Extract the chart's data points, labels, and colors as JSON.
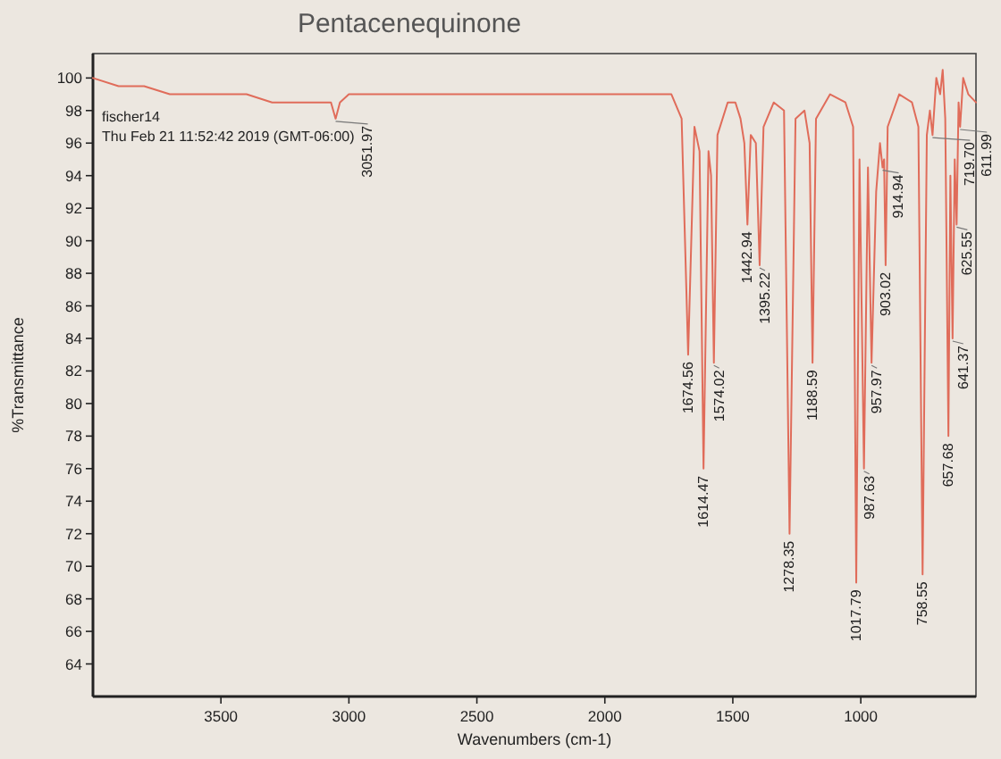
{
  "chart_data": {
    "type": "line",
    "title": "Pentacenequinone",
    "xlabel": "Wavenumbers (cm-1)",
    "ylabel": "%Transmittance",
    "xlim": [
      4000,
      550
    ],
    "ylim": [
      62,
      101.5
    ],
    "xticks": [
      3500,
      3000,
      2500,
      2000,
      1500,
      1000
    ],
    "yticks": [
      64,
      66,
      68,
      70,
      72,
      74,
      76,
      78,
      80,
      82,
      84,
      86,
      88,
      90,
      92,
      94,
      96,
      98,
      100
    ],
    "line_style": "solid",
    "x": [
      4000,
      3900,
      3800,
      3700,
      3600,
      3500,
      3400,
      3300,
      3200,
      3100,
      3070,
      3051.97,
      3035,
      3000,
      2900,
      2700,
      2500,
      2300,
      2100,
      1900,
      1800,
      1740,
      1700,
      1674.56,
      1650,
      1630,
      1614.47,
      1595,
      1585,
      1574.02,
      1560,
      1520,
      1490,
      1470,
      1455,
      1442.94,
      1430,
      1410,
      1395.22,
      1380,
      1340,
      1300,
      1278.35,
      1255,
      1220,
      1200,
      1188.59,
      1175,
      1120,
      1060,
      1030,
      1017.79,
      1005,
      987.63,
      972,
      957.97,
      940,
      925,
      914.94,
      909,
      903.02,
      895,
      850,
      800,
      775,
      758.55,
      742,
      730,
      719.7,
      705,
      690,
      680,
      670,
      657.68,
      650,
      641.37,
      633,
      625.55,
      618,
      611.99,
      600,
      580,
      550
    ],
    "series": [
      {
        "color": "#e06c5a",
        "values": [
          100,
          99.5,
          99.5,
          99,
          99,
          99,
          99,
          98.5,
          98.5,
          98.5,
          98.5,
          97.5,
          98.5,
          99,
          99,
          99,
          99,
          99,
          99,
          99,
          99,
          99,
          97.5,
          83,
          97,
          95.5,
          76,
          95.5,
          94,
          82.5,
          96.5,
          98.5,
          98.5,
          97.5,
          96,
          91,
          96.5,
          96,
          88.5,
          97,
          98.5,
          98,
          72,
          97.5,
          98,
          96,
          82.5,
          97.5,
          99,
          98.5,
          97,
          69,
          95,
          76,
          94.5,
          82.5,
          93,
          96,
          94.5,
          95,
          88.5,
          97,
          99,
          98.5,
          97,
          69.5,
          96.5,
          98,
          96.5,
          100,
          99,
          100.5,
          97.5,
          78,
          94,
          84,
          95,
          91,
          98.5,
          97,
          100,
          99,
          98.5
        ]
      }
    ],
    "annotations": [
      "fischer14",
      "Thu Feb 21 11:52:42 2019 (GMT-06:00)",
      {
        "text": "3051.97",
        "x": 3051.97,
        "y": 97.5
      },
      {
        "text": "1674.56",
        "x": 1674.56,
        "y": 83
      },
      {
        "text": "1614.47",
        "x": 1614.47,
        "y": 76
      },
      {
        "text": "1574.02",
        "x": 1574.02,
        "y": 82.5
      },
      {
        "text": "1442.94",
        "x": 1442.94,
        "y": 91
      },
      {
        "text": "1395.22",
        "x": 1395.22,
        "y": 88.5
      },
      {
        "text": "1278.35",
        "x": 1278.35,
        "y": 72
      },
      {
        "text": "1188.59",
        "x": 1188.59,
        "y": 82.5
      },
      {
        "text": "1017.79",
        "x": 1017.79,
        "y": 69
      },
      {
        "text": "987.63",
        "x": 987.63,
        "y": 76
      },
      {
        "text": "957.97",
        "x": 957.97,
        "y": 82.5
      },
      {
        "text": "914.94",
        "x": 914.94,
        "y": 94.5
      },
      {
        "text": "903.02",
        "x": 903.02,
        "y": 88.5
      },
      {
        "text": "758.55",
        "x": 758.55,
        "y": 69.5
      },
      {
        "text": "719.70",
        "x": 719.7,
        "y": 96.5
      },
      {
        "text": "657.68",
        "x": 657.68,
        "y": 78
      },
      {
        "text": "641.37",
        "x": 641.37,
        "y": 84
      },
      {
        "text": "625.55",
        "x": 625.55,
        "y": 91
      },
      {
        "text": "611.99",
        "x": 611.99,
        "y": 97
      }
    ]
  }
}
